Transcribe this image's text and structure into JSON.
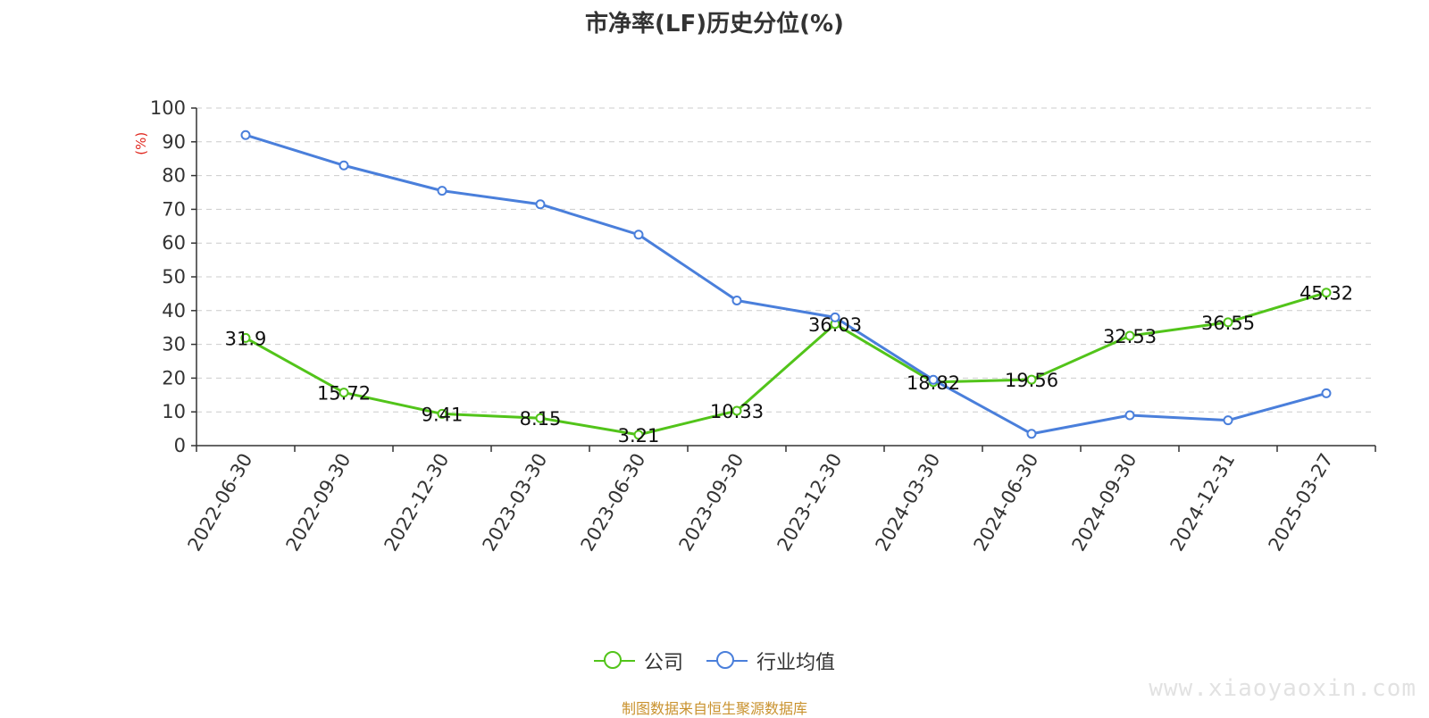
{
  "title": "市净率(LF)历史分位(%)",
  "source_note": "制图数据来自恒生聚源数据库",
  "watermark": "www.xiaoyaoxin.com",
  "colors": {
    "company": "#52c41a",
    "industry": "#4a7fdb",
    "unit": "#e0281f",
    "axis": "#333333",
    "grid": "#cccccc"
  },
  "chart_data": {
    "type": "line",
    "title": "市净率(LF)历史分位(%)",
    "ylabel": "(%)",
    "xlabel": "",
    "ylim": [
      0,
      100
    ],
    "yticks": [
      0,
      10,
      20,
      30,
      40,
      50,
      60,
      70,
      80,
      90,
      100
    ],
    "grid": true,
    "legend": "bottom-center",
    "categories": [
      "2022-06-30",
      "2022-09-30",
      "2022-12-30",
      "2023-03-30",
      "2023-06-30",
      "2023-09-30",
      "2023-12-30",
      "2024-03-30",
      "2024-06-30",
      "2024-09-30",
      "2024-12-31",
      "2025-03-27"
    ],
    "series": [
      {
        "name": "公司",
        "values": [
          31.9,
          15.72,
          9.41,
          8.15,
          3.21,
          10.33,
          36.03,
          18.82,
          19.56,
          32.53,
          36.55,
          45.32
        ],
        "labels": [
          "31.9",
          "15.72",
          "9.41",
          "8.15",
          "3.21",
          "10.33",
          "36.03",
          "18.82",
          "19.56",
          "32.53",
          "36.55",
          "45.32"
        ]
      },
      {
        "name": "行业均值",
        "values": [
          92,
          83,
          75.5,
          71.5,
          62.5,
          43,
          38,
          19.5,
          3.5,
          9,
          7.5,
          15.5
        ]
      }
    ]
  }
}
